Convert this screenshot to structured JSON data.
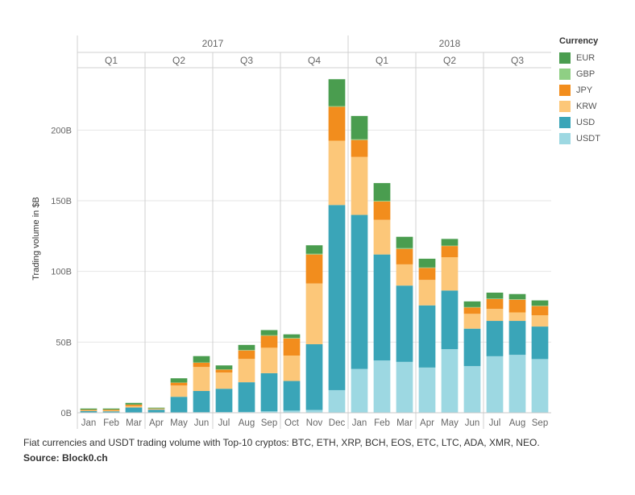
{
  "chart_data": {
    "type": "bar",
    "stacked": true,
    "ylabel": "Trading volume in $B",
    "ylim": [
      0,
      235
    ],
    "yticks": [
      0,
      50,
      100,
      150,
      200
    ],
    "ytick_labels": [
      "0B",
      "50B",
      "100B",
      "150B",
      "200B"
    ],
    "grid": true,
    "legend_title": "Currency",
    "legend_position": "right",
    "years": [
      {
        "label": "2017",
        "start": 0,
        "count": 12
      },
      {
        "label": "2018",
        "start": 12,
        "count": 9
      }
    ],
    "quarters": [
      {
        "label": "Q1",
        "start": 0,
        "count": 3
      },
      {
        "label": "Q2",
        "start": 3,
        "count": 3
      },
      {
        "label": "Q3",
        "start": 6,
        "count": 3
      },
      {
        "label": "Q4",
        "start": 9,
        "count": 3
      },
      {
        "label": "Q1",
        "start": 12,
        "count": 3
      },
      {
        "label": "Q2",
        "start": 15,
        "count": 3
      },
      {
        "label": "Q3",
        "start": 18,
        "count": 3
      }
    ],
    "categories": [
      "Jan",
      "Feb",
      "Mar",
      "Apr",
      "May",
      "Jun",
      "Jul",
      "Aug",
      "Sep",
      "Oct",
      "Nov",
      "Dec",
      "Jan",
      "Feb",
      "Mar",
      "Apr",
      "May",
      "Jun",
      "Jul",
      "Aug",
      "Sep"
    ],
    "series": [
      {
        "name": "USDT",
        "color": "#9dd8e2",
        "values": [
          0.2,
          0.2,
          0.2,
          0.2,
          0.3,
          0.4,
          0.5,
          0.6,
          1.0,
          1.5,
          2.0,
          16,
          31,
          37,
          36,
          32,
          45,
          33,
          40,
          41,
          38
        ]
      },
      {
        "name": "USD",
        "color": "#3aa5b8",
        "values": [
          1.0,
          0.8,
          3.5,
          2.0,
          11,
          15,
          16.5,
          21,
          27,
          21,
          46.5,
          131,
          109,
          75,
          54,
          44,
          41.5,
          26.5,
          25,
          24,
          23
        ]
      },
      {
        "name": "KRW",
        "color": "#fcc779",
        "values": [
          0.3,
          0.5,
          1.0,
          0.5,
          8,
          17,
          11.5,
          16.5,
          18,
          18,
          43,
          45.5,
          41,
          24.5,
          15,
          18,
          23.5,
          10.5,
          8.5,
          6,
          8
        ]
      },
      {
        "name": "JPY",
        "color": "#f28d1d",
        "values": [
          0.6,
          0.7,
          1.0,
          0.3,
          2.0,
          3.0,
          2.0,
          6.0,
          8.5,
          12,
          20.5,
          24,
          12,
          13,
          11,
          8.5,
          8,
          4.5,
          7,
          9,
          6.5
        ]
      },
      {
        "name": "GBP",
        "color": "#8fcf84",
        "values": [
          0.1,
          0.1,
          0.1,
          0.1,
          0.1,
          0.2,
          0.2,
          0.3,
          0.4,
          0.5,
          0.5,
          0.5,
          0.5,
          0.5,
          0.5,
          0.3,
          0.3,
          0.3,
          0.3,
          0.3,
          0.3
        ]
      },
      {
        "name": "EUR",
        "color": "#4a9d4f",
        "values": [
          0.8,
          0.7,
          1.2,
          0.5,
          3.0,
          4.5,
          2.8,
          3.6,
          3.6,
          2.5,
          6,
          19,
          16.5,
          12.5,
          8,
          6.2,
          4.7,
          4,
          4.2,
          3.7,
          3.7
        ]
      }
    ]
  },
  "legend": {
    "title": "Currency",
    "items": [
      {
        "label": "EUR",
        "color": "#4a9d4f"
      },
      {
        "label": "GBP",
        "color": "#8fcf84"
      },
      {
        "label": "JPY",
        "color": "#f28d1d"
      },
      {
        "label": "KRW",
        "color": "#fcc779"
      },
      {
        "label": "USD",
        "color": "#3aa5b8"
      },
      {
        "label": "USDT",
        "color": "#9dd8e2"
      }
    ]
  },
  "caption": {
    "text": "Fiat currencies and USDT trading volume with Top-10 cryptos: BTC, ETH, XRP, BCH, EOS, ETC, LTC, ADA, XMR, NEO.",
    "source": "Source: Block0.ch"
  }
}
